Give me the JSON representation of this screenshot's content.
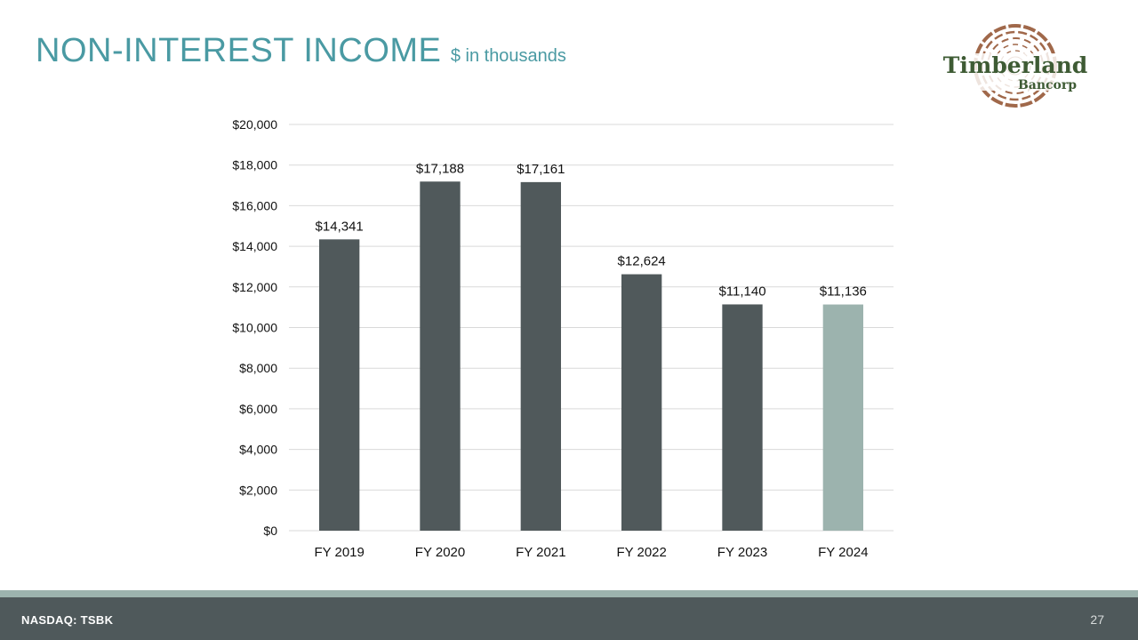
{
  "header": {
    "title": "NON-INTEREST INCOME",
    "subtitle": "$ in thousands"
  },
  "logo": {
    "line1": "Timberland",
    "line2": "Bancorp",
    "colors": {
      "ring": "#a0684a",
      "text": "#3e5b34"
    }
  },
  "chart_data": {
    "type": "bar",
    "title": "NON-INTEREST INCOME",
    "ylabel": "$ in thousands",
    "xlabel": "",
    "categories": [
      "FY 2019",
      "FY 2020",
      "FY 2021",
      "FY 2022",
      "FY 2023",
      "FY 2024"
    ],
    "values": [
      14341,
      17188,
      17161,
      12624,
      11140,
      11136
    ],
    "value_labels": [
      "$14,341",
      "$17,188",
      "$17,161",
      "$12,624",
      "$11,140",
      "$11,136"
    ],
    "ylim": [
      0,
      20000
    ],
    "yticks": [
      0,
      2000,
      4000,
      6000,
      8000,
      10000,
      12000,
      14000,
      16000,
      18000,
      20000
    ],
    "ytick_labels": [
      "$0",
      "$2,000",
      "$4,000",
      "$6,000",
      "$8,000",
      "$10,000",
      "$12,000",
      "$14,000",
      "$16,000",
      "$18,000",
      "$20,000"
    ],
    "grid": true,
    "bar_colors": [
      "#50595b",
      "#50595b",
      "#50595b",
      "#50595b",
      "#50595b",
      "#9cb3ae"
    ]
  },
  "footer": {
    "ticker": "NASDAQ: TSBK",
    "page_number": "27"
  }
}
